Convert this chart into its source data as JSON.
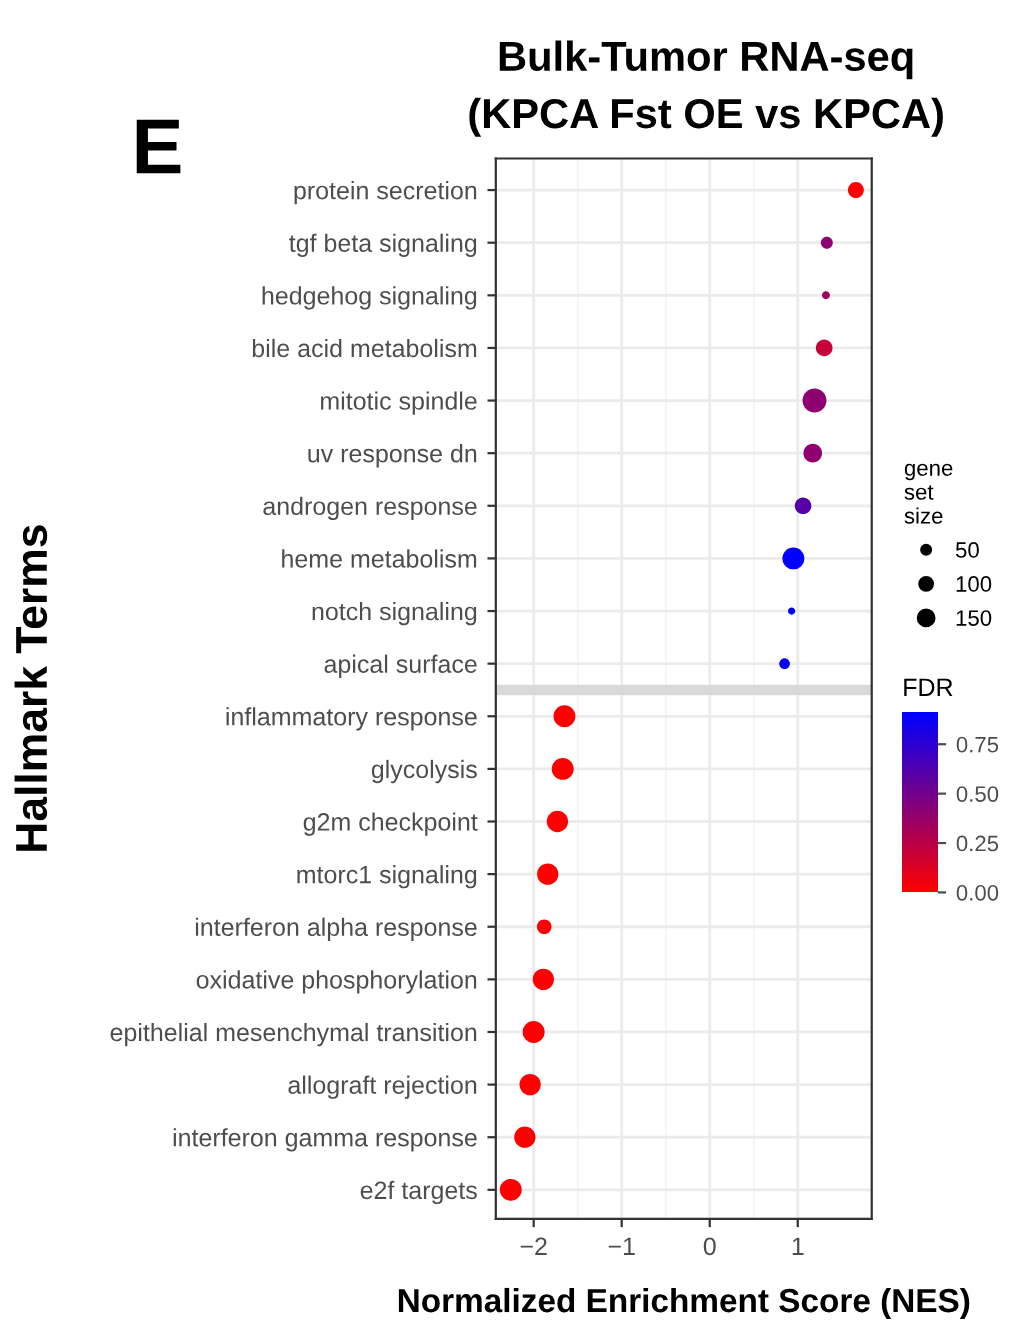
{
  "chart_data": {
    "type": "bubble",
    "title": "Bulk-Tumor RNA-seq",
    "subtitle": "(KPCA Fst OE vs KPCA)",
    "xlabel": "Normalized Enrichment Score (NES)",
    "ylabel": "Hallmark Terms",
    "legend_title": "gene\nset\nsize",
    "clabel": "FDR",
    "annotations": [
      "E"
    ],
    "orientation": "horizontal",
    "categories": [
      "protein secretion",
      "tgf beta signaling",
      "hedgehog signaling",
      "bile acid metabolism",
      "mitotic spindle",
      "uv response dn",
      "androgen response",
      "heme metabolism",
      "notch signaling",
      "apical surface",
      "inflammatory response",
      "glycolysis",
      "g2m checkpoint",
      "mtorc1 signaling",
      "interferon alpha response",
      "oxidative phosphorylation",
      "epithelial mesenchymal transition",
      "allograft rejection",
      "interferon gamma response",
      "e2f targets"
    ],
    "values": [
      1.66,
      1.33,
      1.32,
      1.3,
      1.19,
      1.17,
      1.06,
      0.95,
      0.93,
      0.85,
      -1.65,
      -1.67,
      -1.73,
      -1.84,
      -1.88,
      -1.89,
      -2.0,
      -2.04,
      -2.1,
      -2.26
    ],
    "sizes": [
      150,
      84,
      37,
      163,
      337,
      204,
      163,
      283,
      31,
      67,
      283,
      283,
      267,
      267,
      126,
      267,
      283,
      267,
      267,
      283
    ],
    "cvalues": [
      0.0,
      0.4,
      0.35,
      0.2,
      0.4,
      0.4,
      0.6,
      0.91,
      0.91,
      0.88,
      0.0,
      0.0,
      0.0,
      0.0,
      0.0,
      0.0,
      0.0,
      0.0,
      0.0,
      0.0
    ],
    "size_legend": [
      50,
      100,
      150
    ],
    "clim": [
      0,
      0.91
    ],
    "cticks": [
      {
        "value": 0,
        "label": "0.00"
      },
      {
        "value": 0.25,
        "label": "0.25"
      },
      {
        "value": 0.5,
        "label": "0.50"
      },
      {
        "value": 0.75,
        "label": "0.75"
      }
    ],
    "xlim": [
      -2.43,
      1.84
    ],
    "xticks": [
      {
        "value": -2,
        "label": "−2"
      },
      {
        "value": -1,
        "label": "−1"
      },
      0,
      1
    ],
    "bands": [
      {
        "axis": "y",
        "from": "apical surface",
        "to": "inflammatory response",
        "color": "#d9d9d9"
      }
    ],
    "grid": true
  }
}
